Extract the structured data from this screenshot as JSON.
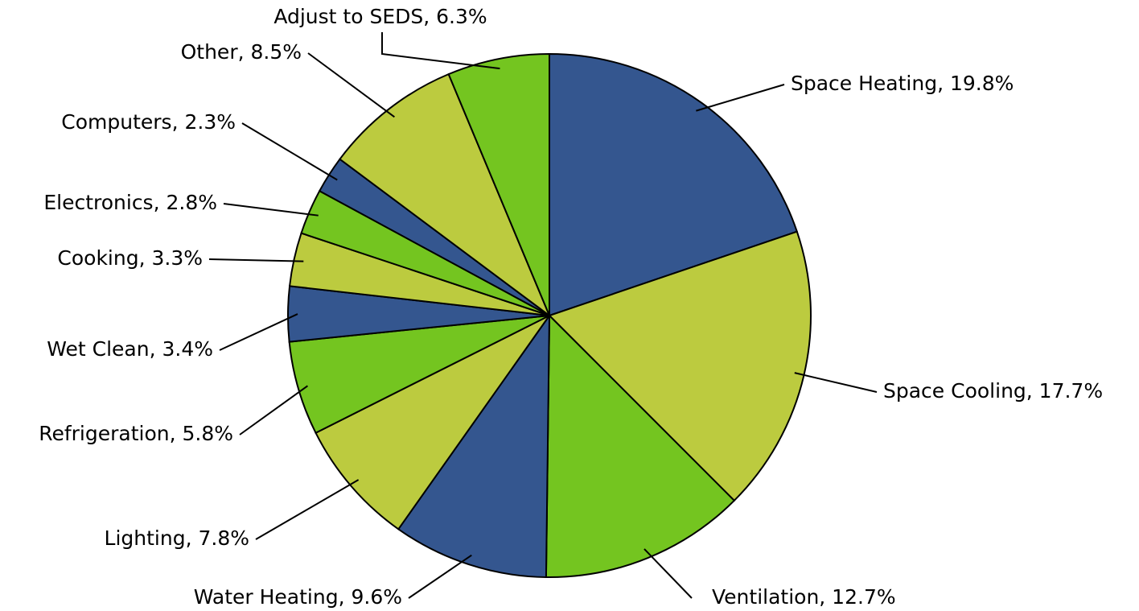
{
  "chart_data": {
    "type": "pie",
    "values": [
      19.8,
      17.7,
      12.7,
      9.6,
      7.8,
      5.8,
      3.4,
      3.3,
      2.8,
      2.3,
      8.5,
      6.3
    ],
    "value_labels": [
      "Space Heating, 19.8%",
      "Space Cooling, 17.7%",
      "Ventilation, 12.7%",
      "Water Heating, 9.6%",
      "Lighting, 7.8%",
      "Refrigeration, 5.8%",
      "Wet Clean, 3.4%",
      "Cooking, 3.3%",
      "Electronics, 2.8%",
      "Computers, 2.3%",
      "Other, 8.5%",
      "Adjust to SEDS, 6.3%"
    ],
    "colors": [
      "#34568f",
      "#bccb3f",
      "#74c520",
      "#34568f",
      "#bccb3f",
      "#74c520",
      "#34568f",
      "#bccb3f",
      "#74c520",
      "#34568f",
      "#bccb3f",
      "#74c520"
    ]
  }
}
